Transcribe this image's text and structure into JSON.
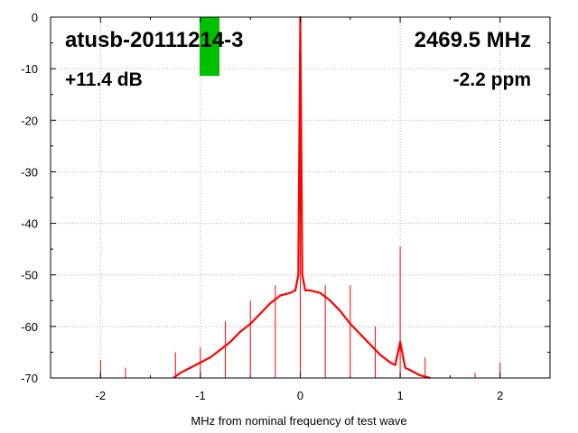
{
  "chart_data": {
    "type": "line",
    "title": "",
    "xlabel": "MHz from nominal frequency of test wave",
    "ylabel": "",
    "xlim": [
      -2.5,
      2.5
    ],
    "ylim": [
      -70,
      0
    ],
    "xticks": [
      -2,
      -1,
      0,
      1,
      2
    ],
    "xtick_labels": [
      "-2",
      "-1",
      "0",
      "1",
      "2"
    ],
    "yticks": [
      0,
      -10,
      -20,
      -30,
      -40,
      -50,
      -60,
      -70
    ],
    "ytick_labels": [
      "0",
      "-10",
      "-20",
      "-30",
      "-40",
      "-50",
      "-60",
      "-70"
    ],
    "grid": true,
    "line_color": "#ff0000",
    "annotations": {
      "device": "atusb-20111214-3",
      "frequency": "2469.5 MHz",
      "level": "+11.4 dB",
      "offset": "-2.2 ppm"
    },
    "level_bar": {
      "color": "#00c000",
      "value_db": -11.4
    },
    "series": [
      {
        "x": [
          -1.27,
          -1.2,
          -1.1,
          -1.0,
          -0.9,
          -0.8,
          -0.7,
          -0.6,
          -0.5,
          -0.4,
          -0.3,
          -0.2,
          -0.1,
          -0.05,
          -0.02,
          0.0,
          0.02,
          0.05,
          0.1,
          0.2,
          0.3,
          0.4,
          0.5,
          0.6,
          0.7,
          0.8,
          0.9,
          0.95,
          1.0,
          1.05,
          1.1,
          1.2,
          1.3
        ],
        "values": [
          -70,
          -69,
          -68,
          -67,
          -66,
          -64.5,
          -63,
          -61,
          -59.5,
          -57.5,
          -55.5,
          -54,
          -53.5,
          -53,
          -50,
          0,
          -50,
          -53,
          -53,
          -53.5,
          -55,
          -57,
          -59.5,
          -61.5,
          -63.5,
          -65.5,
          -67,
          -67.5,
          -63,
          -68,
          -68.5,
          -69.5,
          -70
        ]
      }
    ],
    "spurs": [
      {
        "x": -2.0,
        "y": -66.5
      },
      {
        "x": -1.75,
        "y": -68
      },
      {
        "x": -1.25,
        "y": -65
      },
      {
        "x": -1.0,
        "y": -64
      },
      {
        "x": -0.75,
        "y": -59
      },
      {
        "x": -0.5,
        "y": -55
      },
      {
        "x": -0.25,
        "y": -52
      },
      {
        "x": 0.0,
        "y": -26
      },
      {
        "x": 0.25,
        "y": -52
      },
      {
        "x": 0.5,
        "y": -52
      },
      {
        "x": 0.75,
        "y": -60
      },
      {
        "x": 1.0,
        "y": -44.5
      },
      {
        "x": 1.25,
        "y": -66
      },
      {
        "x": 1.75,
        "y": -69
      },
      {
        "x": 2.0,
        "y": -67
      },
      {
        "x": 2.5,
        "y": -67
      }
    ]
  }
}
